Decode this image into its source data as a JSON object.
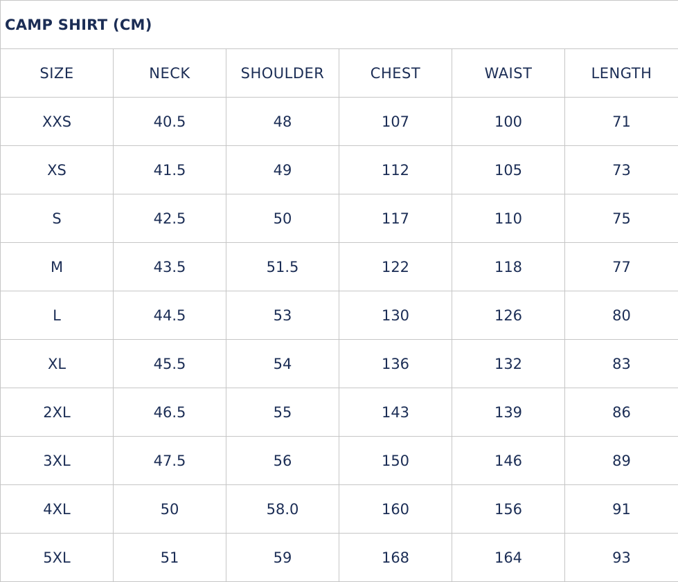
{
  "title": "CAMP SHIRT (CM)",
  "columns": [
    "SIZE",
    "NECK",
    "SHOULDER",
    "CHEST",
    "WAIST",
    "LENGTH"
  ],
  "rows": [
    [
      "XXS",
      "40.5",
      "48",
      "107",
      "100",
      "71"
    ],
    [
      "XS",
      "41.5",
      "49",
      "112",
      "105",
      "73"
    ],
    [
      "S",
      "42.5",
      "50",
      "117",
      "110",
      "75"
    ],
    [
      "M",
      "43.5",
      "51.5",
      "122",
      "118",
      "77"
    ],
    [
      "L",
      "44.5",
      "53",
      "130",
      "126",
      "80"
    ],
    [
      "XL",
      "45.5",
      "54",
      "136",
      "132",
      "83"
    ],
    [
      "2XL",
      "46.5",
      "55",
      "143",
      "139",
      "86"
    ],
    [
      "3XL",
      "47.5",
      "56",
      "150",
      "146",
      "89"
    ],
    [
      "4XL",
      "50",
      "58.0",
      "160",
      "156",
      "91"
    ],
    [
      "5XL",
      "51",
      "59",
      "168",
      "164",
      "93"
    ]
  ],
  "colors": {
    "text": "#1b2d55",
    "border": "#c6c6c6"
  }
}
